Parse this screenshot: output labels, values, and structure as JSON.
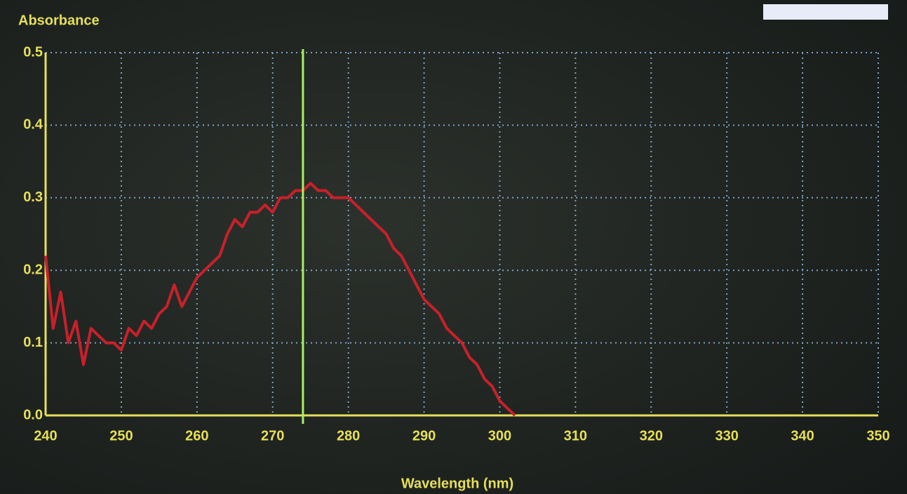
{
  "chart_data": {
    "type": "line",
    "y_label": "Absorbance",
    "x_label": "Wavelength (nm)",
    "x": [
      240,
      241,
      242,
      243,
      244,
      245,
      246,
      247,
      248,
      249,
      250,
      251,
      252,
      253,
      254,
      255,
      256,
      257,
      258,
      259,
      260,
      261,
      262,
      263,
      264,
      265,
      266,
      267,
      268,
      269,
      270,
      271,
      272,
      273,
      274,
      275,
      276,
      277,
      278,
      279,
      280,
      281,
      282,
      283,
      284,
      285,
      286,
      287,
      288,
      289,
      290,
      291,
      292,
      293,
      294,
      295,
      296,
      297,
      298,
      299,
      300,
      301,
      302
    ],
    "values": [
      0.22,
      0.12,
      0.17,
      0.1,
      0.13,
      0.07,
      0.12,
      0.11,
      0.1,
      0.1,
      0.09,
      0.12,
      0.11,
      0.13,
      0.12,
      0.14,
      0.15,
      0.18,
      0.15,
      0.17,
      0.19,
      0.2,
      0.21,
      0.22,
      0.25,
      0.27,
      0.26,
      0.28,
      0.28,
      0.29,
      0.28,
      0.3,
      0.3,
      0.31,
      0.31,
      0.32,
      0.31,
      0.31,
      0.3,
      0.3,
      0.3,
      0.29,
      0.28,
      0.27,
      0.26,
      0.25,
      0.23,
      0.22,
      0.2,
      0.18,
      0.16,
      0.15,
      0.14,
      0.12,
      0.11,
      0.1,
      0.08,
      0.07,
      0.05,
      0.04,
      0.02,
      0.01,
      0.0
    ],
    "color": "#c8202a",
    "cursor_x": 274,
    "cursor_color": "#a8f060",
    "xlim": [
      240,
      350
    ],
    "ylim": [
      0,
      0.5
    ],
    "xticks": [
      240,
      250,
      260,
      270,
      280,
      290,
      300,
      310,
      320,
      330,
      340,
      350
    ],
    "yticks": [
      {
        "value": 0,
        "label": "0.0"
      },
      0.1,
      0.2,
      0.3,
      0.4,
      0.5
    ],
    "grid": true
  }
}
